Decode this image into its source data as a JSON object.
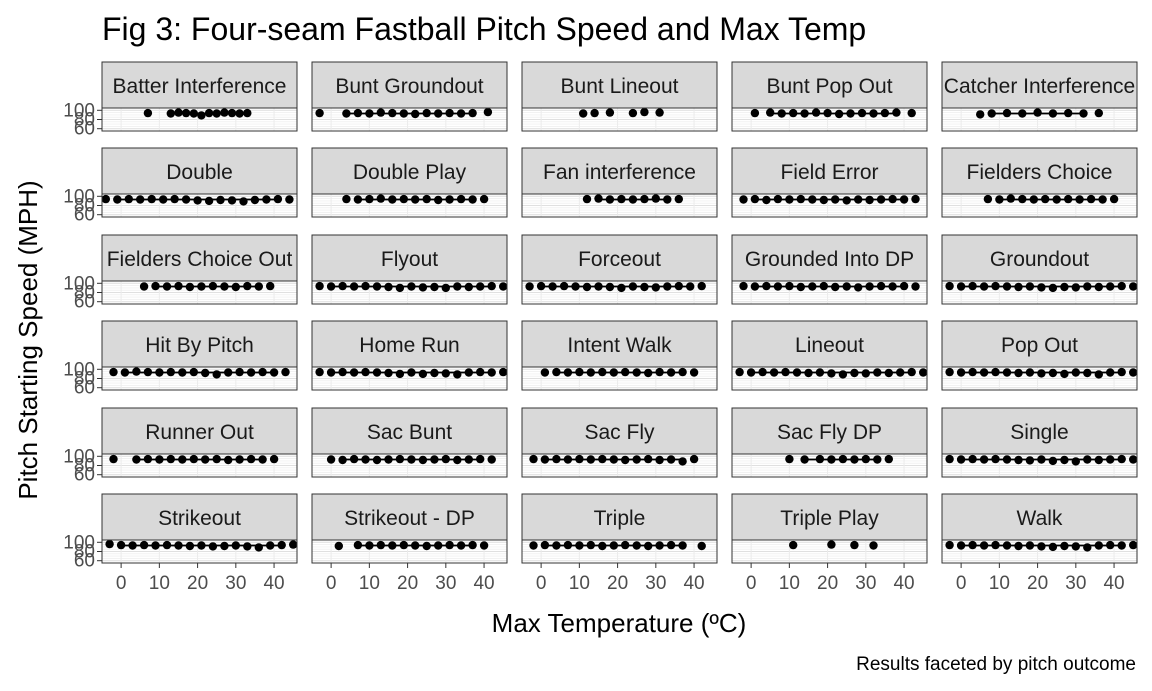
{
  "chart_data": {
    "type": "scatter",
    "title": "Fig 3: Four-seam Fastball Pitch Speed and Max Temp",
    "xlabel": "Max Temperature (ºC)",
    "ylabel": "Pitch Starting Speed (MPH)",
    "caption": "Results faceted by pitch outcome",
    "xlim": [
      -5,
      46
    ],
    "ylim": [
      55,
      105
    ],
    "x_ticks": [
      0,
      10,
      20,
      30,
      40
    ],
    "y_ticks": [
      60,
      80,
      100
    ],
    "y_tick_labels": [
      "60",
      "80",
      "100"
    ],
    "panels": [
      {
        "label": "Batter Interference",
        "x": [
          7,
          13,
          15,
          17,
          19,
          21,
          23,
          25,
          27,
          29,
          31,
          33
        ],
        "y": [
          94,
          93,
          95,
          94,
          93,
          89,
          94,
          93,
          95,
          94,
          93,
          94
        ]
      },
      {
        "label": "Bunt Groundout",
        "x": [
          -3,
          4,
          7,
          10,
          13,
          16,
          19,
          22,
          25,
          28,
          31,
          34,
          37,
          41
        ],
        "y": [
          94,
          93,
          94,
          93,
          95,
          94,
          93,
          92,
          94,
          93,
          94,
          93,
          94,
          96
        ]
      },
      {
        "label": "Bunt Lineout",
        "x": [
          11,
          14,
          18,
          24,
          27,
          31
        ],
        "y": [
          93,
          94,
          95,
          94,
          96,
          95
        ]
      },
      {
        "label": "Bunt Pop Out",
        "x": [
          1,
          5,
          8,
          11,
          14,
          17,
          20,
          23,
          26,
          29,
          32,
          35,
          38,
          42
        ],
        "y": [
          94,
          95,
          93,
          94,
          93,
          95,
          94,
          92,
          93,
          94,
          93,
          94,
          95,
          94
        ]
      },
      {
        "label": "Catcher Interference",
        "x": [
          5,
          8,
          12,
          16,
          20,
          24,
          28,
          32,
          36
        ],
        "y": [
          91,
          93,
          94,
          93,
          95,
          93,
          94,
          93,
          94
        ]
      },
      {
        "label": "Double",
        "x": [
          -4,
          -1,
          2,
          5,
          8,
          11,
          14,
          17,
          20,
          23,
          26,
          29,
          32,
          35,
          38,
          41,
          44
        ],
        "y": [
          94,
          93,
          94,
          93,
          94,
          93,
          94,
          93,
          91,
          90,
          92,
          91,
          89,
          92,
          93,
          94,
          93
        ]
      },
      {
        "label": "Double Play",
        "x": [
          4,
          7,
          10,
          13,
          16,
          19,
          22,
          25,
          28,
          31,
          34,
          37,
          40
        ],
        "y": [
          94,
          93,
          94,
          95,
          93,
          94,
          93,
          94,
          92,
          93,
          94,
          93,
          94
        ]
      },
      {
        "label": "Fan interference",
        "x": [
          12,
          15,
          18,
          21,
          24,
          27,
          30,
          33,
          36
        ],
        "y": [
          94,
          95,
          93,
          94,
          93,
          94,
          95,
          93,
          94
        ]
      },
      {
        "label": "Field Error",
        "x": [
          -2,
          1,
          4,
          7,
          10,
          13,
          16,
          19,
          22,
          25,
          28,
          31,
          34,
          37,
          40,
          43
        ],
        "y": [
          93,
          94,
          92,
          94,
          93,
          94,
          93,
          92,
          93,
          91,
          93,
          92,
          93,
          94,
          93,
          94
        ]
      },
      {
        "label": "Fielders Choice",
        "x": [
          7,
          10,
          13,
          16,
          19,
          22,
          25,
          28,
          31,
          34,
          37,
          40
        ],
        "y": [
          94,
          93,
          95,
          94,
          93,
          94,
          93,
          94,
          93,
          94,
          93,
          94
        ]
      },
      {
        "label": "Fielders Choice Out",
        "x": [
          6,
          9,
          12,
          15,
          18,
          21,
          24,
          27,
          30,
          33,
          36,
          39
        ],
        "y": [
          93,
          94,
          93,
          94,
          92,
          93,
          94,
          93,
          92,
          94,
          93,
          94
        ]
      },
      {
        "label": "Flyout",
        "x": [
          -3,
          0,
          3,
          6,
          9,
          12,
          15,
          18,
          21,
          24,
          27,
          30,
          33,
          36,
          39,
          42,
          45
        ],
        "y": [
          94,
          93,
          94,
          93,
          94,
          93,
          92,
          90,
          93,
          91,
          92,
          90,
          93,
          92,
          93,
          94,
          93
        ]
      },
      {
        "label": "Forceout",
        "x": [
          -3,
          0,
          3,
          6,
          9,
          12,
          15,
          18,
          21,
          24,
          27,
          30,
          33,
          36,
          39,
          42
        ],
        "y": [
          93,
          94,
          93,
          94,
          93,
          92,
          93,
          92,
          90,
          93,
          92,
          91,
          93,
          94,
          93,
          94
        ]
      },
      {
        "label": "Grounded Into DP",
        "x": [
          -2,
          1,
          4,
          7,
          10,
          13,
          16,
          19,
          22,
          25,
          28,
          31,
          34,
          37,
          40,
          43
        ],
        "y": [
          94,
          93,
          94,
          93,
          94,
          92,
          93,
          94,
          92,
          93,
          91,
          93,
          94,
          93,
          94,
          93
        ]
      },
      {
        "label": "Groundout",
        "x": [
          -3,
          0,
          3,
          6,
          9,
          12,
          15,
          18,
          21,
          24,
          27,
          30,
          33,
          36,
          39,
          42,
          45
        ],
        "y": [
          94,
          93,
          94,
          93,
          94,
          93,
          92,
          93,
          91,
          90,
          92,
          91,
          93,
          92,
          93,
          94,
          93
        ]
      },
      {
        "label": "Hit By Pitch",
        "x": [
          -2,
          1,
          4,
          7,
          10,
          13,
          16,
          19,
          22,
          25,
          28,
          31,
          34,
          37,
          40,
          43
        ],
        "y": [
          94,
          93,
          95,
          94,
          93,
          94,
          93,
          94,
          92,
          89,
          93,
          94,
          93,
          94,
          93,
          94
        ]
      },
      {
        "label": "Home Run",
        "x": [
          -3,
          0,
          3,
          6,
          9,
          12,
          15,
          18,
          21,
          24,
          27,
          30,
          33,
          36,
          39,
          42,
          45
        ],
        "y": [
          94,
          93,
          94,
          93,
          94,
          93,
          92,
          90,
          93,
          90,
          92,
          91,
          89,
          93,
          94,
          93,
          94
        ]
      },
      {
        "label": "Intent Walk",
        "x": [
          1,
          4,
          7,
          10,
          13,
          16,
          19,
          22,
          25,
          28,
          31,
          34,
          37,
          40
        ],
        "y": [
          93,
          94,
          93,
          94,
          93,
          94,
          93,
          94,
          93,
          92,
          94,
          93,
          94,
          93
        ]
      },
      {
        "label": "Lineout",
        "x": [
          -3,
          0,
          3,
          6,
          9,
          12,
          15,
          18,
          21,
          24,
          27,
          30,
          33,
          36,
          39,
          42,
          45
        ],
        "y": [
          94,
          93,
          94,
          93,
          94,
          93,
          92,
          93,
          91,
          89,
          92,
          91,
          93,
          92,
          93,
          94,
          93
        ]
      },
      {
        "label": "Pop Out",
        "x": [
          -3,
          0,
          3,
          6,
          9,
          12,
          15,
          18,
          21,
          24,
          27,
          30,
          33,
          36,
          39,
          42,
          45
        ],
        "y": [
          94,
          93,
          94,
          93,
          94,
          93,
          92,
          93,
          91,
          92,
          90,
          93,
          92,
          89,
          93,
          94,
          93
        ]
      },
      {
        "label": "Runner Out",
        "x": [
          -2,
          4,
          7,
          10,
          13,
          16,
          19,
          22,
          25,
          28,
          31,
          34,
          37,
          40
        ],
        "y": [
          94,
          93,
          94,
          93,
          94,
          93,
          94,
          93,
          94,
          92,
          93,
          94,
          93,
          94
        ]
      },
      {
        "label": "Sac Bunt",
        "x": [
          0,
          3,
          6,
          9,
          12,
          15,
          18,
          21,
          24,
          27,
          30,
          33,
          36,
          39,
          42
        ],
        "y": [
          93,
          92,
          94,
          93,
          92,
          93,
          94,
          93,
          92,
          93,
          94,
          92,
          93,
          94,
          93
        ]
      },
      {
        "label": "Sac Fly",
        "x": [
          -2,
          1,
          4,
          7,
          10,
          13,
          16,
          19,
          22,
          25,
          28,
          31,
          34,
          37,
          40
        ],
        "y": [
          94,
          93,
          94,
          93,
          94,
          93,
          94,
          93,
          92,
          93,
          94,
          92,
          93,
          89,
          94
        ]
      },
      {
        "label": "Sac Fly DP",
        "x": [
          10,
          14,
          18,
          21,
          24,
          27,
          30,
          33,
          36
        ],
        "y": [
          94,
          93,
          94,
          93,
          94,
          93,
          94,
          93,
          94
        ]
      },
      {
        "label": "Single",
        "x": [
          -3,
          0,
          3,
          6,
          9,
          12,
          15,
          18,
          21,
          24,
          27,
          30,
          33,
          36,
          39,
          42,
          45
        ],
        "y": [
          94,
          93,
          94,
          93,
          94,
          93,
          92,
          91,
          93,
          90,
          92,
          89,
          93,
          92,
          93,
          94,
          93
        ]
      },
      {
        "label": "Strikeout",
        "x": [
          -3,
          0,
          3,
          6,
          9,
          12,
          15,
          18,
          21,
          24,
          27,
          30,
          33,
          36,
          39,
          42,
          45
        ],
        "y": [
          96,
          94,
          93,
          94,
          93,
          94,
          93,
          92,
          93,
          91,
          92,
          93,
          91,
          89,
          93,
          94,
          95
        ]
      },
      {
        "label": "Strikeout - DP",
        "x": [
          2,
          7,
          10,
          13,
          16,
          19,
          22,
          25,
          28,
          31,
          34,
          37,
          40
        ],
        "y": [
          92,
          94,
          93,
          94,
          93,
          94,
          93,
          92,
          93,
          94,
          93,
          94,
          93
        ]
      },
      {
        "label": "Triple",
        "x": [
          -2,
          1,
          4,
          7,
          10,
          13,
          16,
          19,
          22,
          25,
          28,
          31,
          34,
          37,
          42
        ],
        "y": [
          93,
          94,
          93,
          94,
          93,
          94,
          92,
          93,
          94,
          93,
          92,
          93,
          94,
          93,
          92
        ]
      },
      {
        "label": "Triple Play",
        "x": [
          11,
          21,
          27,
          32
        ],
        "y": [
          94,
          95,
          94,
          93
        ]
      },
      {
        "label": "Walk",
        "x": [
          -3,
          0,
          3,
          6,
          9,
          12,
          15,
          18,
          21,
          24,
          27,
          30,
          33,
          36,
          39,
          42,
          45
        ],
        "y": [
          94,
          93,
          94,
          93,
          94,
          93,
          92,
          93,
          91,
          90,
          92,
          91,
          89,
          93,
          94,
          93,
          94
        ]
      }
    ]
  }
}
